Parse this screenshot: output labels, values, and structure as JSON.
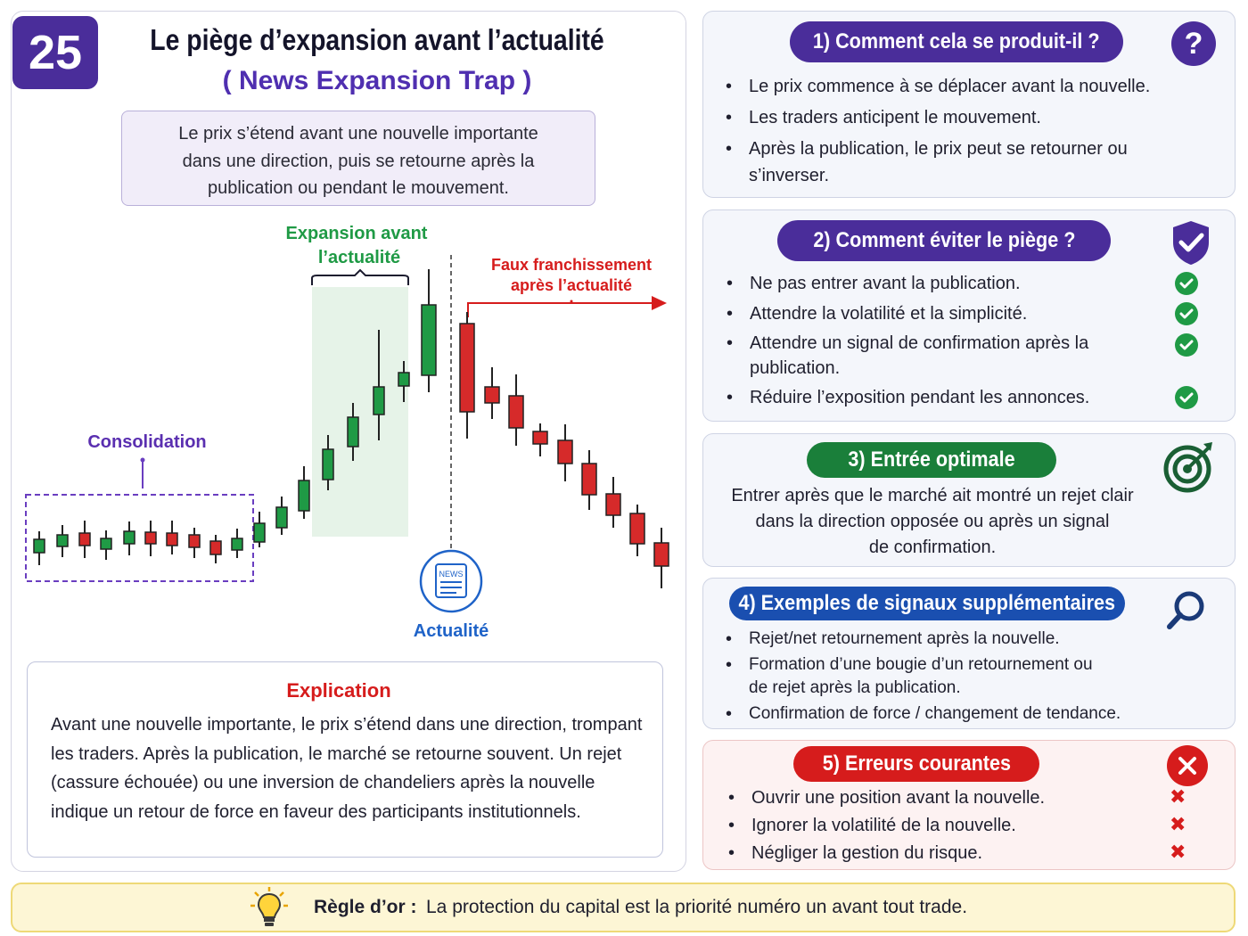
{
  "header": {
    "number": "25",
    "title": "Le piège d’expansion avant l’actualité",
    "subtitle": "( News Expansion Trap )",
    "definition_lines": [
      "Le prix s’étend avant une nouvelle importante",
      "dans une direction, puis se retourne après la",
      "publication ou pendant le mouvement."
    ]
  },
  "diagram": {
    "label_consolidation": "Consolidation",
    "label_expansion_line1": "Expansion avant",
    "label_expansion_line2": "l’actualité",
    "label_fake_line1": "Faux franchissement",
    "label_fake_line2": "après l’actualité",
    "label_news": "Actualité",
    "news_icon_text": "NEWS",
    "colors": {
      "bull": "#1f9a45",
      "bear": "#d62a2a",
      "consolidation": "#6a3ec0",
      "news": "#1f63c8"
    },
    "candles": [
      {
        "c": "bull",
        "o": 605,
        "cl": 620
      },
      {
        "c": "bull",
        "o": 600,
        "cl": 613
      },
      {
        "c": "bear",
        "o": 598,
        "cl": 612
      },
      {
        "c": "bull",
        "o": 604,
        "cl": 616
      },
      {
        "c": "bull",
        "o": 596,
        "cl": 610
      },
      {
        "c": "bear",
        "o": 597,
        "cl": 610
      },
      {
        "c": "bear",
        "o": 598,
        "cl": 612
      },
      {
        "c": "bear",
        "o": 600,
        "cl": 614
      },
      {
        "c": "bear",
        "o": 607,
        "cl": 622
      },
      {
        "c": "bull",
        "o": 604,
        "cl": 617
      },
      {
        "c": "bull",
        "o": 587,
        "cl": 608
      },
      {
        "c": "bull",
        "o": 569,
        "cl": 592
      },
      {
        "c": "bull",
        "o": 539,
        "cl": 573
      },
      {
        "c": "bull",
        "o": 504,
        "cl": 538
      },
      {
        "c": "bull",
        "o": 468,
        "cl": 501
      },
      {
        "c": "bull",
        "o": 434,
        "cl": 465
      },
      {
        "c": "bull",
        "o": 418,
        "cl": 433
      },
      {
        "c": "bull",
        "o": 342,
        "cl": 421
      },
      {
        "c": "bear",
        "o": 363,
        "cl": 462
      },
      {
        "c": "bear",
        "o": 434,
        "cl": 452
      },
      {
        "c": "bear",
        "o": 444,
        "cl": 480
      },
      {
        "c": "bear",
        "o": 484,
        "cl": 498
      },
      {
        "c": "bear",
        "o": 494,
        "cl": 520
      },
      {
        "c": "bear",
        "o": 520,
        "cl": 555
      },
      {
        "c": "bear",
        "o": 554,
        "cl": 578
      },
      {
        "c": "bear",
        "o": 576,
        "cl": 610
      },
      {
        "c": "bear",
        "o": 609,
        "cl": 635
      }
    ]
  },
  "explanation": {
    "title": "Explication",
    "lines": [
      "Avant une nouvelle importante, le prix s’étend dans une direction, trompant",
      "les traders. Après la publication, le marché se retourne souvent. Un rejet",
      "(cassure échouée) ou une inversion de chandeliers après la nouvelle",
      "indique un retour de force en faveur des participants institutionnels."
    ]
  },
  "cards": {
    "c1": {
      "title": "1) Comment cela se produit-il ?",
      "icon": "question-icon",
      "color": "#4a2d9a",
      "items": [
        "Le prix commence à se déplacer avant la nouvelle.",
        "Les traders anticipent le mouvement.",
        "Après la publication, le prix peut se retourner ou s’inverser."
      ]
    },
    "c2": {
      "title": "2) Comment éviter le piège ?",
      "icon": "shield-check-icon",
      "color": "#4a2d9a",
      "items": [
        "Ne pas entrer avant la publication.",
        "Attendre la volatilité et la simplicité.",
        "Attendre un signal de confirmation après la publication.",
        "Réduire l’exposition pendant les annonces."
      ]
    },
    "c3": {
      "title": "3) Entrée optimale",
      "icon": "target-icon",
      "color": "#1a7f3a",
      "text_lines": [
        "Entrer après que le marché ait montré un rejet clair",
        "dans la direction opposée ou après un signal",
        "de confirmation."
      ]
    },
    "c4": {
      "title": "4) Exemples de signaux supplémentaires",
      "icon": "magnifier-icon",
      "color": "#1a4fb0",
      "items": [
        "Rejet/net retournement après la nouvelle.",
        "Formation d’une bougie d’un retournement ou de rejet après la publication.",
        "Confirmation de force / changement de tendance."
      ]
    },
    "c5": {
      "title": "5) Erreurs courantes",
      "icon": "x-circle-icon",
      "color": "#d61c1c",
      "items": [
        "Ouvrir une position avant la nouvelle.",
        "Ignorer la volatilité de la nouvelle.",
        "Négliger la gestion du risque."
      ]
    }
  },
  "golden_rule": {
    "icon": "lightbulb-icon",
    "label": "Règle d’or :",
    "text": "La protection du capital est la priorité numéro un avant tout trade."
  }
}
